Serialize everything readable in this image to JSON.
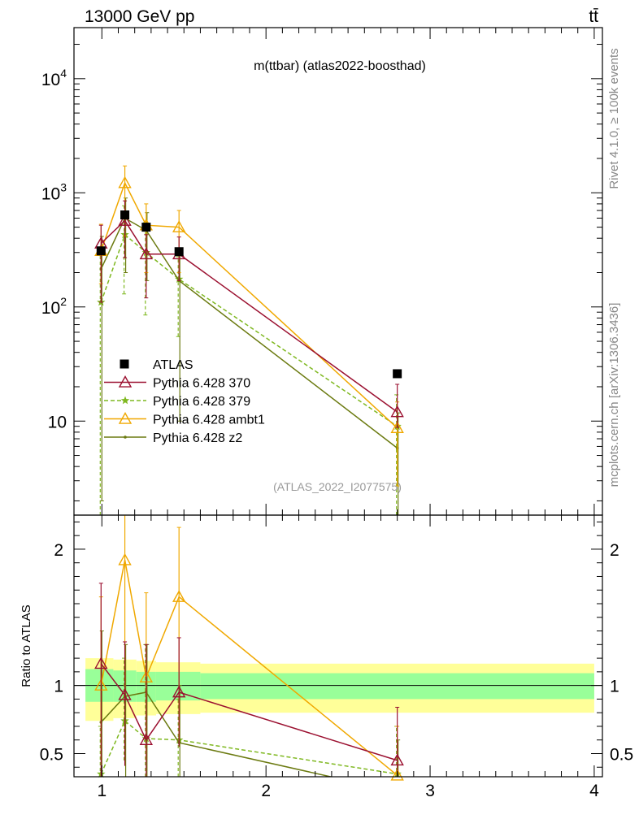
{
  "header": {
    "left": "13000 GeV pp",
    "right": "tt̄"
  },
  "side_labels": {
    "rivet": "Rivet 4.1.0, ≥ 100k events",
    "mcplots": "mcplots.cern.ch [arXiv:1306.3436]"
  },
  "colors": {
    "atlas": "#000000",
    "p370": "#9b1030",
    "p379": "#7fb820",
    "ambt1": "#f0a800",
    "z2": "#6b7a10",
    "band_inner": "#99ff99",
    "band_outer": "#ffff99"
  },
  "chart_data": [
    {
      "type": "line",
      "panel": "main",
      "title": "m(ttbar) (atlas2022-boosthad)",
      "watermark": "(ATLAS_2022_I2077575)",
      "yscale": "log",
      "xlim": [
        0.83,
        4.05
      ],
      "ylim": [
        1.5,
        28000
      ],
      "yticks": [
        {
          "value": 10000,
          "base": "10",
          "exp": "4"
        },
        {
          "value": 1000,
          "base": "10",
          "exp": "3"
        },
        {
          "value": 100,
          "base": "10",
          "exp": "2"
        },
        {
          "value": 10,
          "base": "10",
          "exp": ""
        }
      ],
      "legend_position": "center-left",
      "series": [
        {
          "name": "ATLAS",
          "key": "atlas",
          "style": "data",
          "x": [
            0.995,
            1.14,
            1.27,
            1.47,
            2.8
          ],
          "y": [
            310,
            640,
            500,
            305,
            26
          ],
          "xerr": [
            0,
            0,
            0,
            0,
            0
          ],
          "yerr": [
            [
              0,
              0,
              0,
              0,
              0
            ],
            [
              0,
              0,
              0,
              0,
              0
            ]
          ]
        },
        {
          "name": "Pythia 6.428 370",
          "key": "p370",
          "style": "solid",
          "marker": "triangle-open",
          "x": [
            0.995,
            1.14,
            1.27,
            1.47,
            2.8
          ],
          "y": [
            360,
            570,
            290,
            290,
            12
          ],
          "yerr": [
            [
              250,
              300,
              170,
              120,
              3.2
            ],
            [
              160,
              280,
              140,
              120,
              9
            ]
          ]
        },
        {
          "name": "Pythia 6.428 379",
          "key": "p379",
          "style": "dashed",
          "marker": "star",
          "x": [
            0.995,
            1.14,
            1.27,
            1.47,
            2.8
          ],
          "y": [
            110,
            430,
            300,
            175,
            9
          ],
          "yerr": [
            [
              109,
              300,
              215,
              120,
              7.5
            ],
            [
              200,
              340,
              250,
              100,
              8
            ]
          ]
        },
        {
          "name": "Pythia 6.428 ambt1",
          "key": "ambt1",
          "style": "solid",
          "marker": "triangle-open",
          "x": [
            0.995,
            1.14,
            1.27,
            1.47,
            2.8
          ],
          "y": [
            310,
            1220,
            520,
            500,
            8.7
          ],
          "yerr": [
            [
              150,
              800,
              320,
              300,
              6
            ],
            [
              220,
              500,
              280,
              200,
              6
            ]
          ]
        },
        {
          "name": "Pythia 6.428 z2",
          "key": "z2",
          "style": "solid",
          "marker": "dot",
          "x": [
            0.995,
            1.14,
            1.27,
            1.47,
            2.8
          ],
          "y": [
            215,
            600,
            470,
            170,
            5.8
          ],
          "yerr": [
            [
              213,
              400,
              300,
              160,
              5.7
            ],
            [
              200,
              300,
              200,
              140,
              6
            ]
          ]
        }
      ]
    },
    {
      "type": "line",
      "panel": "ratio",
      "ylabel": "Ratio to ATLAS",
      "xlim": [
        0.83,
        4.05
      ],
      "ylim": [
        0.33,
        2.25
      ],
      "xticks": [
        "1",
        "2",
        "3",
        "4"
      ],
      "yticks": [
        "0.5",
        "1",
        "2"
      ],
      "reference_line": 1.0,
      "bands": {
        "x_edges": [
          0.9,
          1.07,
          1.21,
          1.33,
          1.6,
          4.0
        ],
        "inner_lo": [
          0.88,
          0.88,
          0.88,
          0.89,
          0.9
        ],
        "inner_hi": [
          1.12,
          1.11,
          1.1,
          1.1,
          1.09
        ],
        "outer_lo": [
          0.74,
          0.76,
          0.78,
          0.79,
          0.8
        ],
        "outer_hi": [
          1.2,
          1.19,
          1.18,
          1.17,
          1.16
        ]
      },
      "series": [
        {
          "key": "p370",
          "x": [
            0.995,
            1.14,
            1.27,
            1.47,
            2.8
          ],
          "y": [
            1.16,
            0.93,
            0.6,
            0.95,
            0.45
          ],
          "ylo": [
            0.28,
            0.41,
            0.3,
            0.55,
            0.3
          ],
          "yhi": [
            1.75,
            1.32,
            1.3,
            1.35,
            0.84
          ]
        },
        {
          "key": "p379",
          "x": [
            0.995,
            1.14,
            1.27,
            1.47,
            2.8
          ],
          "y": [
            0.35,
            0.74,
            0.61,
            0.6,
            0.35
          ],
          "ylo": [
            0.3,
            0.45,
            0.3,
            0.3,
            0.3
          ],
          "yhi": [
            0.7,
            1.2,
            1.3,
            0.9,
            0.7
          ]
        },
        {
          "key": "ambt1",
          "x": [
            0.995,
            1.14,
            1.27,
            1.47,
            2.8
          ],
          "y": [
            1.0,
            1.92,
            1.06,
            1.65,
            0.34
          ],
          "ylo": [
            0.45,
            0.98,
            0.45,
            0.6,
            0.3
          ],
          "yhi": [
            1.65,
            2.3,
            1.68,
            2.16,
            0.7
          ]
        },
        {
          "key": "z2",
          "x": [
            0.995,
            1.14,
            1.27,
            1.47,
            2.8
          ],
          "y": [
            0.73,
            0.92,
            0.95,
            0.58,
            0.22
          ],
          "ylo": [
            0.3,
            0.3,
            0.3,
            0.3,
            0.3
          ],
          "yhi": [
            1.4,
            1.3,
            1.3,
            1.0,
            0.6
          ]
        }
      ]
    }
  ]
}
